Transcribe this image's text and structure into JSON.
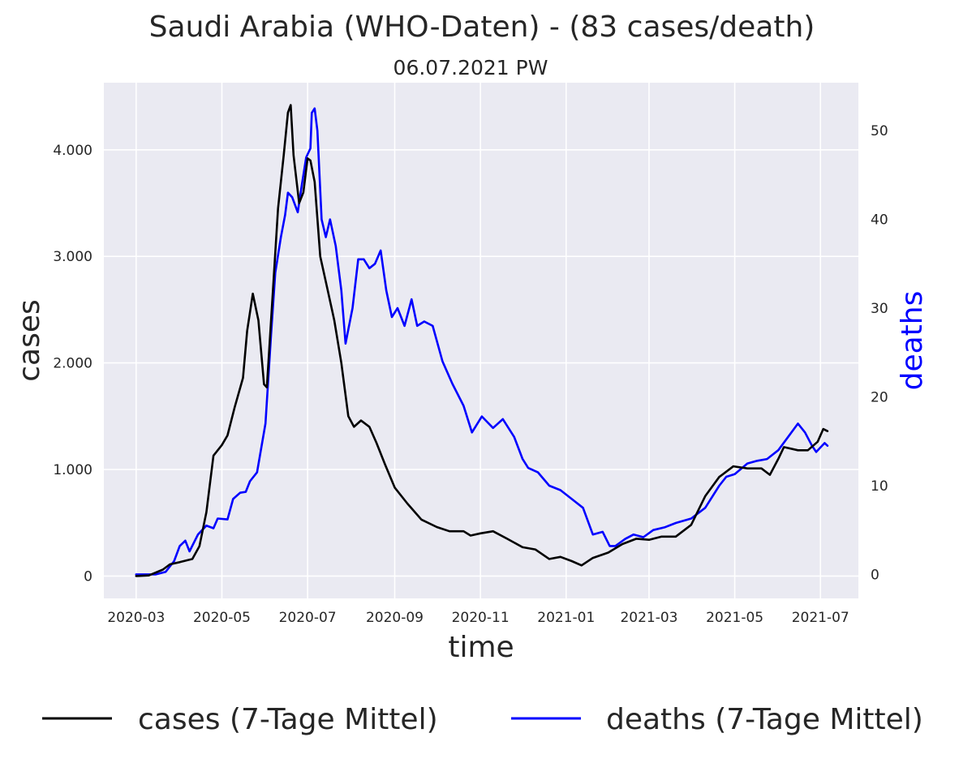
{
  "chart_data": {
    "type": "line",
    "title": "Saudi Arabia (WHO-Daten) - (83 cases/death)",
    "subtitle": "06.07.2021 PW",
    "xlabel": "time",
    "ylabel": "cases",
    "y2label": "deaths",
    "xlim": [
      "2020-02-07",
      "2021-07-28"
    ],
    "ylim": [
      -210,
      4630
    ],
    "y2lim": [
      -2.7,
      55.4
    ],
    "x_ticks": [
      "2020-03-01",
      "2020-05-01",
      "2020-07-01",
      "2020-09-01",
      "2020-11-01",
      "2021-01-01",
      "2021-03-01",
      "2021-05-01",
      "2021-07-01"
    ],
    "x_tick_labels": [
      "2020-03",
      "2020-05",
      "2020-07",
      "2020-09",
      "2020-11",
      "2021-01",
      "2021-03",
      "2021-05",
      "2021-07"
    ],
    "y_ticks": [
      0,
      1000,
      2000,
      3000,
      4000
    ],
    "y_tick_labels": [
      "0",
      "1.000",
      "2.000",
      "3.000",
      "4.000"
    ],
    "y2_ticks": [
      0,
      10,
      20,
      30,
      40,
      50
    ],
    "y2_tick_labels": [
      "0",
      "10",
      "20",
      "30",
      "40",
      "50"
    ],
    "grid": true,
    "legend_position": "bottom",
    "colors": {
      "plot_background": "#eaeaf2",
      "grid": "#ffffff",
      "cases": "#000000",
      "deaths": "#0000ff",
      "deaths_axis_label": "#0000ff"
    },
    "series": [
      {
        "name": "cases (7-Tage Mittel)",
        "axis": "left",
        "color": "#000000",
        "points": [
          [
            "2020-03-01",
            0
          ],
          [
            "2020-03-10",
            5
          ],
          [
            "2020-03-20",
            60
          ],
          [
            "2020-03-25",
            110
          ],
          [
            "2020-04-01",
            130
          ],
          [
            "2020-04-10",
            160
          ],
          [
            "2020-04-15",
            280
          ],
          [
            "2020-04-20",
            600
          ],
          [
            "2020-04-25",
            1130
          ],
          [
            "2020-05-01",
            1230
          ],
          [
            "2020-05-05",
            1320
          ],
          [
            "2020-05-10",
            1580
          ],
          [
            "2020-05-16",
            1860
          ],
          [
            "2020-05-19",
            2300
          ],
          [
            "2020-05-23",
            2650
          ],
          [
            "2020-05-27",
            2400
          ],
          [
            "2020-05-31",
            1800
          ],
          [
            "2020-06-02",
            1770
          ],
          [
            "2020-06-05",
            2400
          ],
          [
            "2020-06-10",
            3450
          ],
          [
            "2020-06-14",
            3950
          ],
          [
            "2020-06-17",
            4350
          ],
          [
            "2020-06-19",
            4420
          ],
          [
            "2020-06-21",
            3950
          ],
          [
            "2020-06-25",
            3500
          ],
          [
            "2020-06-28",
            3600
          ],
          [
            "2020-07-01",
            3920
          ],
          [
            "2020-07-03",
            3900
          ],
          [
            "2020-07-06",
            3700
          ],
          [
            "2020-07-10",
            3000
          ],
          [
            "2020-07-15",
            2700
          ],
          [
            "2020-07-20",
            2400
          ],
          [
            "2020-07-25",
            2000
          ],
          [
            "2020-07-30",
            1500
          ],
          [
            "2020-08-03",
            1400
          ],
          [
            "2020-08-08",
            1460
          ],
          [
            "2020-08-14",
            1400
          ],
          [
            "2020-08-19",
            1250
          ],
          [
            "2020-08-25",
            1050
          ],
          [
            "2020-09-01",
            830
          ],
          [
            "2020-09-10",
            680
          ],
          [
            "2020-09-20",
            530
          ],
          [
            "2020-10-01",
            460
          ],
          [
            "2020-10-10",
            420
          ],
          [
            "2020-10-20",
            420
          ],
          [
            "2020-10-25",
            380
          ],
          [
            "2020-11-01",
            400
          ],
          [
            "2020-11-10",
            420
          ],
          [
            "2020-11-20",
            350
          ],
          [
            "2020-12-01",
            270
          ],
          [
            "2020-12-10",
            250
          ],
          [
            "2020-12-20",
            160
          ],
          [
            "2020-12-28",
            180
          ],
          [
            "2021-01-05",
            140
          ],
          [
            "2021-01-12",
            100
          ],
          [
            "2021-01-20",
            170
          ],
          [
            "2021-01-31",
            220
          ],
          [
            "2021-02-10",
            300
          ],
          [
            "2021-02-20",
            350
          ],
          [
            "2021-03-01",
            340
          ],
          [
            "2021-03-10",
            370
          ],
          [
            "2021-03-20",
            370
          ],
          [
            "2021-03-31",
            480
          ],
          [
            "2021-04-10",
            750
          ],
          [
            "2021-04-20",
            930
          ],
          [
            "2021-04-30",
            1030
          ],
          [
            "2021-05-10",
            1010
          ],
          [
            "2021-05-20",
            1010
          ],
          [
            "2021-05-26",
            950
          ],
          [
            "2021-06-01",
            1100
          ],
          [
            "2021-06-05",
            1210
          ],
          [
            "2021-06-15",
            1180
          ],
          [
            "2021-06-22",
            1180
          ],
          [
            "2021-06-29",
            1260
          ],
          [
            "2021-07-03",
            1380
          ],
          [
            "2021-07-06",
            1360
          ]
        ]
      },
      {
        "name": "deaths (7-Tage Mittel)",
        "axis": "right",
        "color": "#0000ff",
        "points": [
          [
            "2020-03-01",
            0
          ],
          [
            "2020-03-15",
            0
          ],
          [
            "2020-03-22",
            0.3
          ],
          [
            "2020-03-28",
            1.5
          ],
          [
            "2020-04-01",
            3.2
          ],
          [
            "2020-04-05",
            3.8
          ],
          [
            "2020-04-08",
            2.6
          ],
          [
            "2020-04-14",
            4.5
          ],
          [
            "2020-04-20",
            5.5
          ],
          [
            "2020-04-25",
            5.2
          ],
          [
            "2020-04-28",
            6.3
          ],
          [
            "2020-05-05",
            6.2
          ],
          [
            "2020-05-09",
            8.5
          ],
          [
            "2020-05-14",
            9.2
          ],
          [
            "2020-05-18",
            9.3
          ],
          [
            "2020-05-21",
            10.5
          ],
          [
            "2020-05-26",
            11.5
          ],
          [
            "2020-06-01",
            17.0
          ],
          [
            "2020-06-05",
            27.0
          ],
          [
            "2020-06-08",
            34.0
          ],
          [
            "2020-06-12",
            38.0
          ],
          [
            "2020-06-15",
            40.5
          ],
          [
            "2020-06-17",
            43.0
          ],
          [
            "2020-06-20",
            42.5
          ],
          [
            "2020-06-24",
            40.8
          ],
          [
            "2020-06-27",
            44.0
          ],
          [
            "2020-06-30",
            47.0
          ],
          [
            "2020-07-03",
            48.0
          ],
          [
            "2020-07-04",
            52.0
          ],
          [
            "2020-07-06",
            52.5
          ],
          [
            "2020-07-08",
            50.0
          ],
          [
            "2020-07-11",
            40.0
          ],
          [
            "2020-07-14",
            38.0
          ],
          [
            "2020-07-17",
            40.0
          ],
          [
            "2020-07-21",
            37.0
          ],
          [
            "2020-07-25",
            32.0
          ],
          [
            "2020-07-28",
            26.0
          ],
          [
            "2020-08-02",
            30.0
          ],
          [
            "2020-08-06",
            35.5
          ],
          [
            "2020-08-10",
            35.5
          ],
          [
            "2020-08-14",
            34.5
          ],
          [
            "2020-08-18",
            35.0
          ],
          [
            "2020-08-22",
            36.5
          ],
          [
            "2020-08-26",
            32.0
          ],
          [
            "2020-08-30",
            29.0
          ],
          [
            "2020-09-03",
            30.0
          ],
          [
            "2020-09-08",
            28.0
          ],
          [
            "2020-09-13",
            31.0
          ],
          [
            "2020-09-17",
            28.0
          ],
          [
            "2020-09-22",
            28.5
          ],
          [
            "2020-09-28",
            28.0
          ],
          [
            "2020-10-05",
            24.0
          ],
          [
            "2020-10-12",
            21.5
          ],
          [
            "2020-10-20",
            19.0
          ],
          [
            "2020-10-26",
            16.0
          ],
          [
            "2020-11-02",
            17.8
          ],
          [
            "2020-11-10",
            16.5
          ],
          [
            "2020-11-17",
            17.5
          ],
          [
            "2020-11-25",
            15.5
          ],
          [
            "2020-12-01",
            13.0
          ],
          [
            "2020-12-05",
            12.0
          ],
          [
            "2020-12-12",
            11.5
          ],
          [
            "2020-12-20",
            10.0
          ],
          [
            "2020-12-28",
            9.5
          ],
          [
            "2021-01-05",
            8.5
          ],
          [
            "2021-01-13",
            7.5
          ],
          [
            "2021-01-20",
            4.5
          ],
          [
            "2021-01-27",
            4.8
          ],
          [
            "2021-02-01",
            3.2
          ],
          [
            "2021-02-05",
            3.2
          ],
          [
            "2021-02-12",
            4.0
          ],
          [
            "2021-02-18",
            4.5
          ],
          [
            "2021-02-25",
            4.2
          ],
          [
            "2021-03-04",
            5.0
          ],
          [
            "2021-03-12",
            5.3
          ],
          [
            "2021-03-20",
            5.8
          ],
          [
            "2021-03-31",
            6.3
          ],
          [
            "2021-04-10",
            7.5
          ],
          [
            "2021-04-20",
            10.0
          ],
          [
            "2021-04-25",
            11.0
          ],
          [
            "2021-05-01",
            11.3
          ],
          [
            "2021-05-10",
            12.5
          ],
          [
            "2021-05-17",
            12.8
          ],
          [
            "2021-05-24",
            13.0
          ],
          [
            "2021-06-01",
            14.0
          ],
          [
            "2021-06-08",
            15.5
          ],
          [
            "2021-06-15",
            17.0
          ],
          [
            "2021-06-20",
            16.0
          ],
          [
            "2021-06-25",
            14.5
          ],
          [
            "2021-06-28",
            13.8
          ],
          [
            "2021-07-04",
            14.8
          ],
          [
            "2021-07-06",
            14.5
          ]
        ]
      }
    ]
  }
}
